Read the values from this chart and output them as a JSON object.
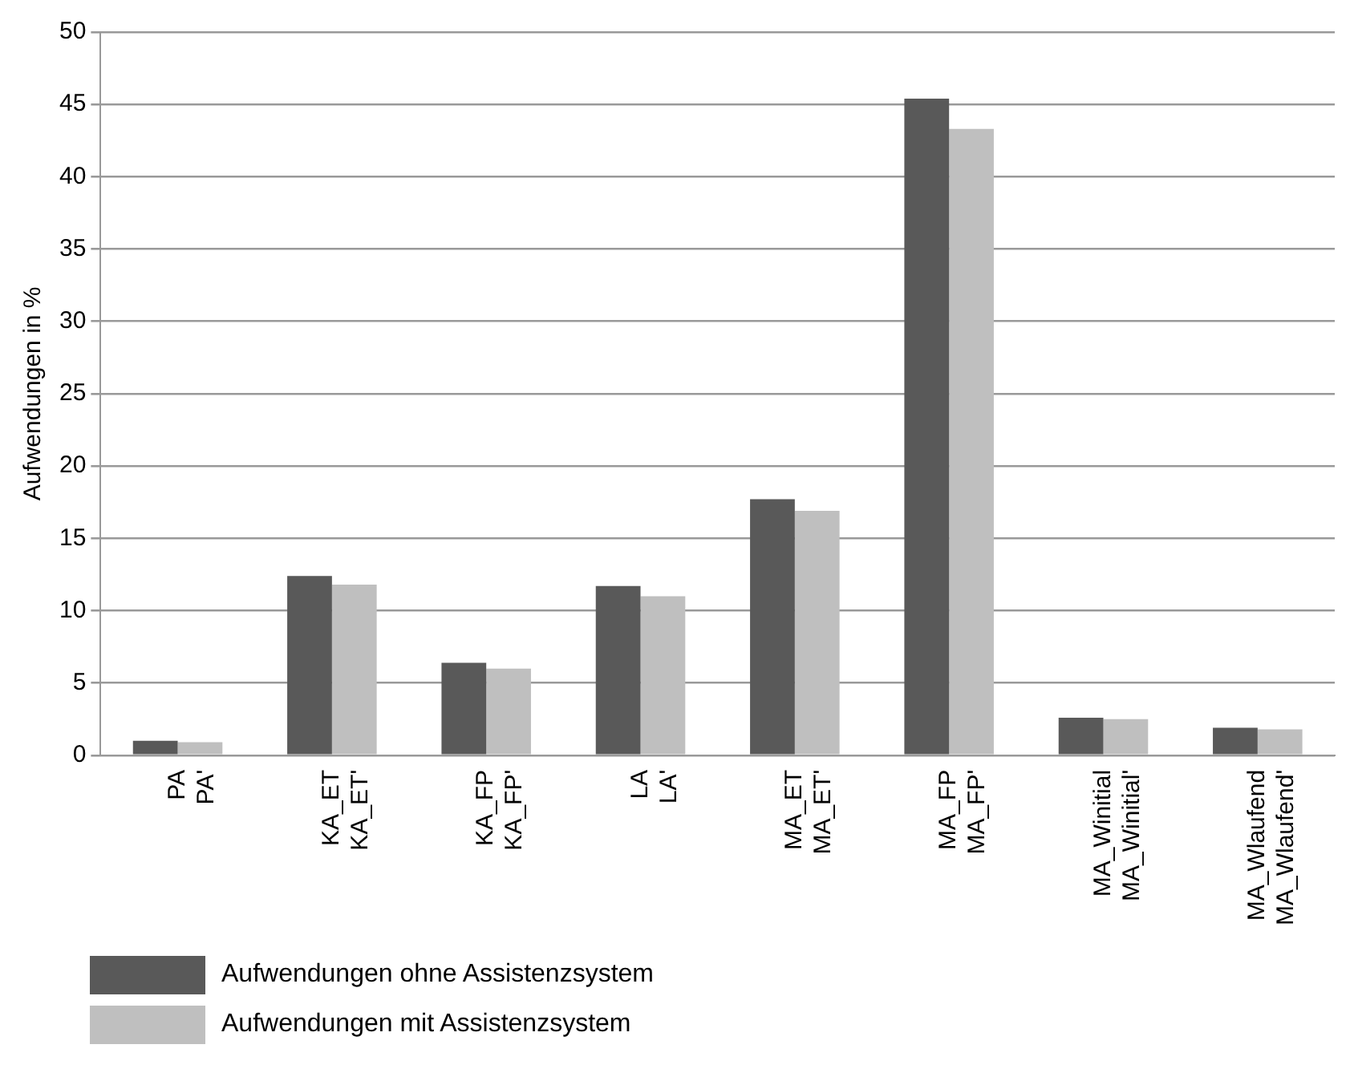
{
  "chart_data": {
    "type": "bar",
    "ylabel": "Aufwendungen in %",
    "categories": [
      "PA\nPA'",
      "KA_ET\nKA_ET'",
      "KA_FP\nKA_FP'",
      "LA\nLA'",
      "MA_ET\nMA_ET'",
      "MA_FP\nMA_FP'",
      "MA_Winitial\nMA_Winitial'",
      "MA_Wlaufend\nMA_Wlaufend'"
    ],
    "series": [
      {
        "name": "Aufwendungen ohne Assistenzsystem",
        "color": "#595959",
        "values": [
          1.0,
          12.4,
          6.4,
          11.7,
          17.7,
          45.4,
          2.6,
          1.9
        ]
      },
      {
        "name": "Aufwendungen mit Assistenzsystem",
        "color": "#bfbfbf",
        "values": [
          0.9,
          11.8,
          6.0,
          11.0,
          16.9,
          43.3,
          2.5,
          1.8
        ]
      }
    ],
    "ylim": [
      0,
      50
    ],
    "yticks": [
      0,
      5,
      10,
      15,
      20,
      25,
      30,
      35,
      40,
      45,
      50
    ],
    "grid": "y",
    "legend": "bottom left"
  }
}
